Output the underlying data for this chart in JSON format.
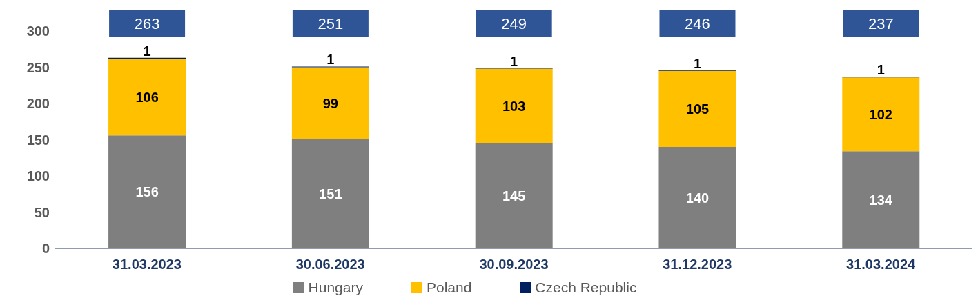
{
  "chart_data": {
    "type": "bar",
    "stacked": true,
    "categories": [
      "31.03.2023",
      "30.06.2023",
      "30.09.2023",
      "31.12.2023",
      "31.03.2024"
    ],
    "series": [
      {
        "name": "Hungary",
        "color": "#7f7f7f",
        "values": [
          156,
          151,
          145,
          140,
          134
        ]
      },
      {
        "name": "Poland",
        "color": "#ffc000",
        "values": [
          106,
          99,
          103,
          105,
          102
        ]
      },
      {
        "name": "Czech Republic",
        "color": "#002060",
        "values": [
          1,
          1,
          1,
          1,
          1
        ]
      }
    ],
    "totals": [
      "263",
      "251",
      "249",
      "246",
      "237"
    ],
    "ylim": [
      0,
      300
    ],
    "yticks": [
      0,
      50,
      100,
      150,
      200,
      250,
      300
    ],
    "grid": false,
    "legend": "bottom",
    "data_labels": true
  }
}
